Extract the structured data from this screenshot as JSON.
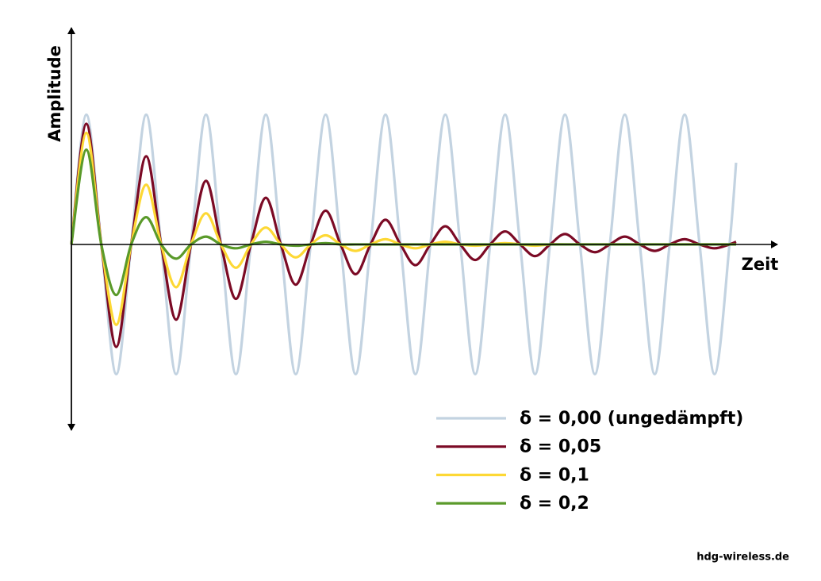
{
  "chart_data": {
    "type": "line",
    "x_label": "Zeit",
    "y_label": "Amplitude",
    "credit": "hdg-wireless.de",
    "xlim": [
      0,
      11.8
    ],
    "ylim": [
      -1.42,
      1.67
    ],
    "legend": "lower right",
    "x": [
      0,
      0.25,
      0.5,
      0.75,
      1,
      1.25,
      1.5,
      1.75,
      2,
      2.25,
      2.5,
      2.75,
      3,
      3.25,
      3.5,
      3.75,
      4,
      4.25,
      4.5,
      4.75,
      5,
      5.25,
      5.5,
      5.75,
      6,
      6.25,
      6.5,
      6.75,
      7,
      7.25,
      7.5,
      7.75,
      8,
      8.25,
      8.5,
      8.75,
      9,
      9.25,
      9.5,
      9.75,
      10,
      10.25,
      10.5,
      10.75,
      11,
      11.11
    ],
    "series": [
      {
        "name": "δ = 0,00 (ungedämpft)",
        "color": "#c3d3e1",
        "values": [
          0,
          1,
          0,
          -1,
          0,
          1,
          0,
          -1,
          0,
          1,
          0,
          -1,
          0,
          1,
          0,
          -1,
          0,
          1,
          0,
          -1,
          0,
          1,
          0,
          -1,
          0,
          1,
          0,
          -1,
          0,
          1,
          0,
          -1,
          0,
          1,
          0,
          -1,
          0,
          1,
          0,
          -1,
          0,
          1,
          0,
          -1,
          0,
          0.63
        ]
      },
      {
        "name": "δ = 0,05",
        "color": "#7b0a25",
        "values": [
          0,
          0.93,
          0,
          -0.79,
          0,
          0.68,
          0,
          -0.58,
          0,
          0.49,
          0,
          -0.42,
          0,
          0.36,
          0,
          -0.31,
          0,
          0.26,
          0,
          -0.23,
          0,
          0.19,
          0,
          -0.16,
          0,
          0.14,
          0,
          -0.12,
          0,
          0.1,
          0,
          -0.09,
          0,
          0.08,
          0,
          -0.06,
          0,
          0.06,
          0,
          -0.05,
          0,
          0.04,
          0,
          -0.03,
          0,
          0.02
        ]
      },
      {
        "name": "δ = 0,1",
        "color": "#fdd835",
        "values": [
          0,
          0.86,
          0,
          -0.62,
          0,
          0.46,
          0,
          -0.33,
          0,
          0.24,
          0,
          -0.18,
          0,
          0.13,
          0,
          -0.1,
          0,
          0.07,
          0,
          -0.05,
          0,
          0.04,
          0,
          -0.03,
          0,
          0.02,
          0,
          -0.01,
          0,
          0.01,
          0,
          -0.01,
          0,
          0,
          0,
          0,
          0,
          0,
          0,
          0,
          0,
          0,
          0,
          0,
          0,
          0
        ]
      },
      {
        "name": "δ = 0,2",
        "color": "#5a9a2a",
        "values": [
          0,
          0.73,
          0,
          -0.39,
          0,
          0.21,
          0,
          -0.11,
          0,
          0.06,
          0,
          -0.03,
          0,
          0.02,
          0,
          -0.01,
          0,
          0.01,
          0,
          0,
          0,
          0,
          0,
          0,
          0,
          0,
          0,
          0,
          0,
          0,
          0,
          0,
          0,
          0,
          0,
          0,
          0,
          0,
          0,
          0,
          0,
          0,
          0,
          0,
          0,
          0
        ]
      }
    ]
  }
}
